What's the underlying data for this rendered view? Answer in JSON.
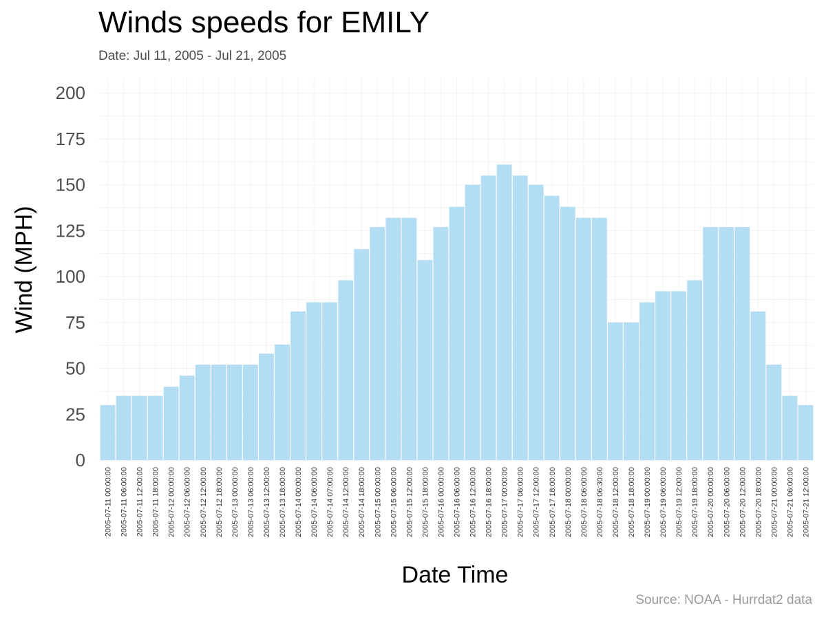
{
  "title": "Winds speeds for EMILY",
  "subtitle": "Date:  Jul 11, 2005 - Jul 21, 2005",
  "caption": "Source: NOAA - Hurrdat2 data",
  "chart_data": {
    "type": "bar",
    "title": "Winds speeds for EMILY",
    "subtitle": "Date:  Jul 11, 2005 - Jul 21, 2005",
    "xlabel": "Date Time",
    "ylabel": "Wind (MPH)",
    "ylim": [
      0,
      200
    ],
    "yticks": [
      0,
      25,
      50,
      75,
      100,
      125,
      150,
      175,
      200
    ],
    "grid": true,
    "bar_color": "#b3ddf2",
    "categories": [
      "2005-07-11 00:00:00",
      "2005-07-11 06:00:00",
      "2005-07-11 12:00:00",
      "2005-07-11 18:00:00",
      "2005-07-12 00:00:00",
      "2005-07-12 06:00:00",
      "2005-07-12 12:00:00",
      "2005-07-12 18:00:00",
      "2005-07-13 00:00:00",
      "2005-07-13 06:00:00",
      "2005-07-13 12:00:00",
      "2005-07-13 18:00:00",
      "2005-07-14 00:00:00",
      "2005-07-14 06:00:00",
      "2005-07-14 07:00:00",
      "2005-07-14 12:00:00",
      "2005-07-14 18:00:00",
      "2005-07-15 00:00:00",
      "2005-07-15 06:00:00",
      "2005-07-15 12:00:00",
      "2005-07-15 18:00:00",
      "2005-07-16 00:00:00",
      "2005-07-16 06:00:00",
      "2005-07-16 12:00:00",
      "2005-07-16 18:00:00",
      "2005-07-17 00:00:00",
      "2005-07-17 06:00:00",
      "2005-07-17 12:00:00",
      "2005-07-17 18:00:00",
      "2005-07-18 00:00:00",
      "2005-07-18 06:00:00",
      "2005-07-18 06:30:00",
      "2005-07-18 12:00:00",
      "2005-07-18 18:00:00",
      "2005-07-19 00:00:00",
      "2005-07-19 06:00:00",
      "2005-07-19 12:00:00",
      "2005-07-19 18:00:00",
      "2005-07-20 00:00:00",
      "2005-07-20 06:00:00",
      "2005-07-20 12:00:00",
      "2005-07-20 18:00:00",
      "2005-07-21 00:00:00",
      "2005-07-21 06:00:00",
      "2005-07-21 12:00:00"
    ],
    "values": [
      30,
      35,
      35,
      35,
      40,
      46,
      52,
      52,
      52,
      52,
      58,
      63,
      81,
      86,
      86,
      98,
      115,
      127,
      132,
      132,
      109,
      127,
      138,
      150,
      155,
      161,
      155,
      150,
      144,
      138,
      132,
      132,
      75,
      75,
      86,
      92,
      92,
      98,
      127,
      127,
      127,
      81,
      52,
      35,
      30
    ]
  }
}
